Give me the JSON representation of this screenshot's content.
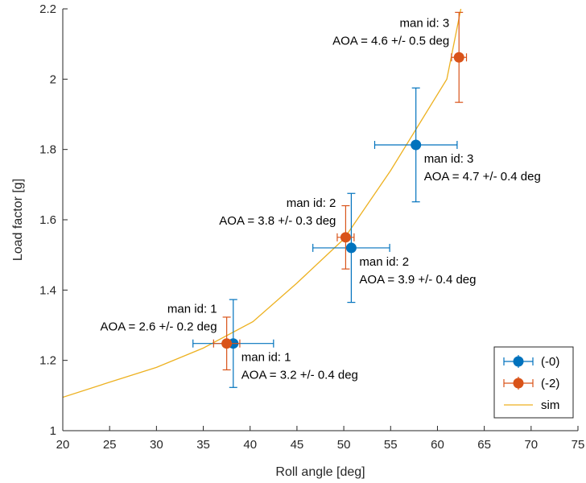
{
  "chart_data": {
    "type": "scatter",
    "xlabel": "Roll angle [deg]",
    "ylabel": "Load factor [g]",
    "xlim": [
      20,
      75
    ],
    "ylim": [
      1,
      2.2
    ],
    "xticks": [
      20,
      25,
      30,
      35,
      40,
      45,
      50,
      55,
      60,
      65,
      70,
      75
    ],
    "yticks": [
      1,
      1.2,
      1.4,
      1.6,
      1.8,
      2,
      2.2
    ],
    "xtick_labels": [
      "20",
      "25",
      "30",
      "35",
      "40",
      "45",
      "50",
      "55",
      "60",
      "65",
      "70",
      "75"
    ],
    "ytick_labels": [
      "1",
      "1.2",
      "1.4",
      "1.6",
      "1.8",
      "2",
      "2.2"
    ],
    "grid": false,
    "legend_position": "bottom-right",
    "series": [
      {
        "name": "(-0)",
        "kind": "errorbar",
        "color": "#0072BD",
        "points": [
          {
            "x": 38.2,
            "y": 1.248,
            "xerr": 4.3,
            "yerr": 0.125
          },
          {
            "x": 50.8,
            "y": 1.52,
            "xerr": 4.1,
            "yerr": 0.155
          },
          {
            "x": 57.7,
            "y": 1.813,
            "xerr": 4.4,
            "yerr": 0.162
          }
        ]
      },
      {
        "name": "(-2)",
        "kind": "errorbar",
        "color": "#D95319",
        "points": [
          {
            "x": 37.5,
            "y": 1.248,
            "xerr": 1.4,
            "yerr": 0.075
          },
          {
            "x": 50.2,
            "y": 1.55,
            "xerr": 0.9,
            "yerr": 0.09
          },
          {
            "x": 62.3,
            "y": 2.062,
            "xerr": 0.8,
            "yerr": 0.128
          }
        ]
      },
      {
        "name": "sim",
        "kind": "line",
        "color": "#EDB120",
        "x": [
          20,
          25,
          30,
          35,
          40.3,
          45,
          50,
          55,
          58,
          61,
          62.5
        ],
        "y": [
          1.095,
          1.138,
          1.18,
          1.235,
          1.31,
          1.42,
          1.545,
          1.74,
          1.87,
          2.0,
          2.2
        ]
      }
    ],
    "annotations": [
      {
        "lines": [
          "man id: 1",
          "AOA = 2.6 +/- 0.2 deg"
        ],
        "x": 37.5,
        "y": 1.248,
        "anchor": "end",
        "side": "above"
      },
      {
        "lines": [
          "man id: 1",
          "AOA = 3.2 +/- 0.4 deg"
        ],
        "x": 38.2,
        "y": 1.248,
        "anchor": "start",
        "side": "below"
      },
      {
        "lines": [
          "man id: 2",
          "AOA = 3.8 +/- 0.3 deg"
        ],
        "x": 50.2,
        "y": 1.55,
        "anchor": "end",
        "side": "above"
      },
      {
        "lines": [
          "man id: 2",
          "AOA = 3.9 +/- 0.4 deg"
        ],
        "x": 50.8,
        "y": 1.52,
        "anchor": "start",
        "side": "below"
      },
      {
        "lines": [
          "man id: 3",
          "AOA = 4.6 +/- 0.5 deg"
        ],
        "x": 62.3,
        "y": 2.062,
        "anchor": "end",
        "side": "above"
      },
      {
        "lines": [
          "man id: 3",
          "AOA = 4.7 +/- 0.4 deg"
        ],
        "x": 57.7,
        "y": 1.813,
        "anchor": "start",
        "side": "below"
      }
    ]
  }
}
